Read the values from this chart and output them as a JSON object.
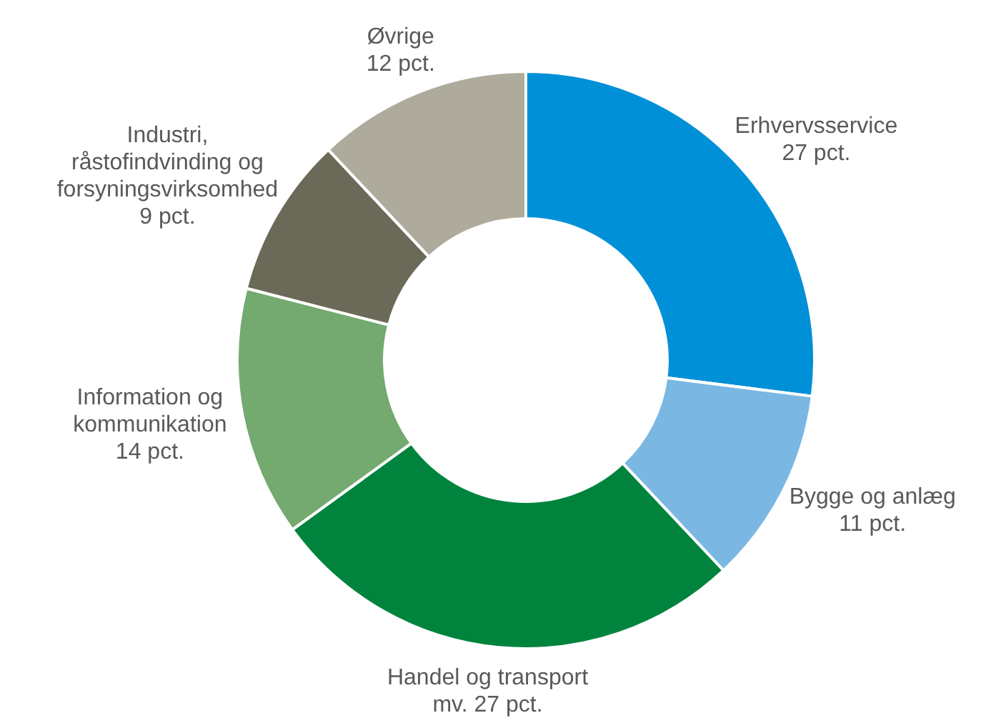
{
  "chart_data": {
    "type": "donut",
    "categories": [
      "Erhvervsservice",
      "Bygge og anlæg",
      "Handel og transport mv.",
      "Information og kommunikation",
      "Industri, råstofindvinding og forsyningsvirksomhed",
      "Øvrige"
    ],
    "values": [
      27,
      11,
      27,
      14,
      9,
      12
    ],
    "value_labels": [
      "27 pct.",
      "11 pct.",
      "27 pct.",
      "14 pct.",
      "9 pct.",
      "12 pct."
    ],
    "colors": [
      "#0090d8",
      "#7ab8e3",
      "#00843d",
      "#74a96f",
      "#6b6a58",
      "#aeab9c"
    ],
    "legend": false
  }
}
